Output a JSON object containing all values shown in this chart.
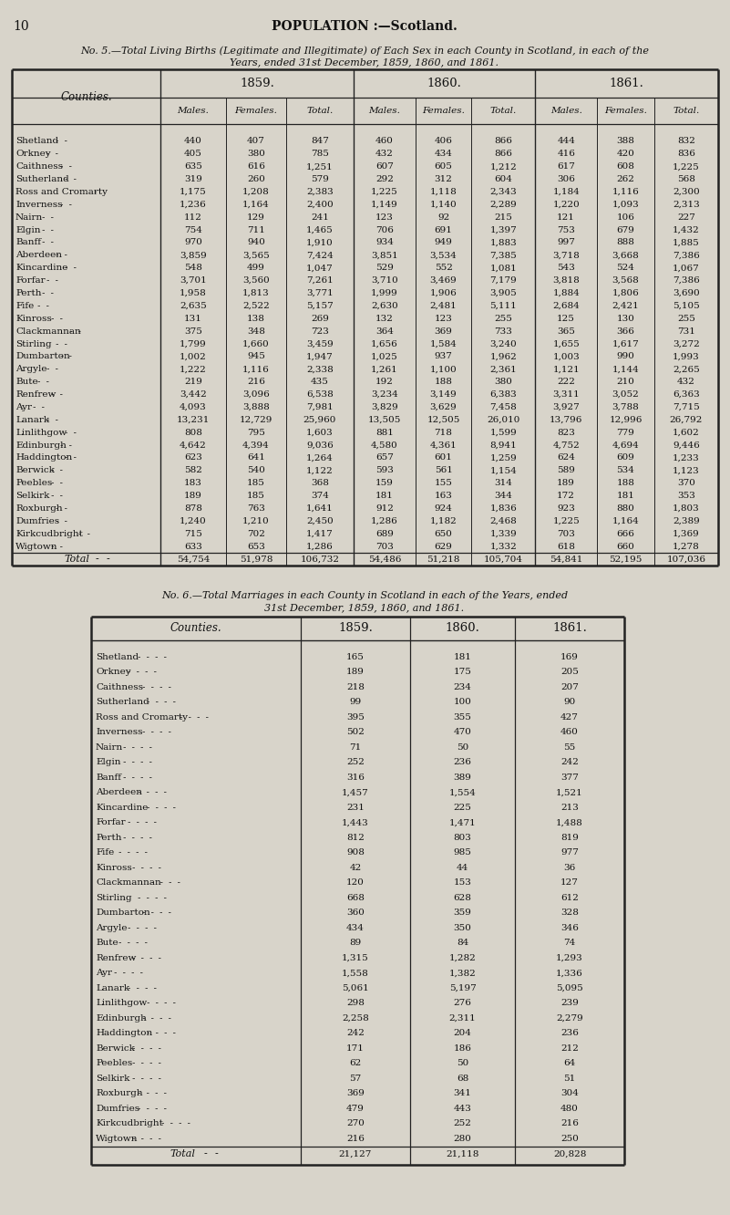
{
  "page_num": "10",
  "page_title": "POPULATION :—Scotland.",
  "table1_title_line1": "No. 5.—Total Living Births (Legitimate and Illegitimate) of Each Sex in each County in Scotland, in each of the",
  "table1_title_line2": "Years, ended 31st December, 1859, 1860, and 1861.",
  "table2_title_line1": "No. 6.—Total Marriages in each County in Scotland in each of the Years, ended",
  "table2_title_line2": "31st December, 1859, 1860, and 1861.",
  "counties": [
    "Shetland",
    "Orkney",
    "Caithness",
    "Sutherland",
    "Ross and Cromarty",
    "Inverness",
    "Nairn",
    "Elgin",
    "Banff",
    "Aberdeen",
    "Kincardine",
    "Forfar",
    "Perth",
    "Fife",
    "Kinross",
    "Clackmannan",
    "Stirling",
    "Dumbarton",
    "Argyle",
    "Bute",
    "Renfrew",
    "Ayr",
    "Lanark",
    "Linlithgow",
    "Edinburgh",
    "Haddington",
    "Berwick",
    "Peebles",
    "Selkirk",
    "Roxburgh",
    "Dumfries",
    "Kirkcudbright",
    "Wigtown"
  ],
  "table1_data": [
    [
      440,
      407,
      847,
      460,
      406,
      866,
      444,
      388,
      832
    ],
    [
      405,
      380,
      785,
      432,
      434,
      866,
      416,
      420,
      836
    ],
    [
      635,
      616,
      1251,
      607,
      605,
      1212,
      617,
      608,
      1225
    ],
    [
      319,
      260,
      579,
      292,
      312,
      604,
      306,
      262,
      568
    ],
    [
      1175,
      1208,
      2383,
      1225,
      1118,
      2343,
      1184,
      1116,
      2300
    ],
    [
      1236,
      1164,
      2400,
      1149,
      1140,
      2289,
      1220,
      1093,
      2313
    ],
    [
      112,
      129,
      241,
      123,
      92,
      215,
      121,
      106,
      227
    ],
    [
      754,
      711,
      1465,
      706,
      691,
      1397,
      753,
      679,
      1432
    ],
    [
      970,
      940,
      1910,
      934,
      949,
      1883,
      997,
      888,
      1885
    ],
    [
      3859,
      3565,
      7424,
      3851,
      3534,
      7385,
      3718,
      3668,
      7386
    ],
    [
      548,
      499,
      1047,
      529,
      552,
      1081,
      543,
      524,
      1067
    ],
    [
      3701,
      3560,
      7261,
      3710,
      3469,
      7179,
      3818,
      3568,
      7386
    ],
    [
      1958,
      1813,
      3771,
      1999,
      1906,
      3905,
      1884,
      1806,
      3690
    ],
    [
      2635,
      2522,
      5157,
      2630,
      2481,
      5111,
      2684,
      2421,
      5105
    ],
    [
      131,
      138,
      269,
      132,
      123,
      255,
      125,
      130,
      255
    ],
    [
      375,
      348,
      723,
      364,
      369,
      733,
      365,
      366,
      731
    ],
    [
      1799,
      1660,
      3459,
      1656,
      1584,
      3240,
      1655,
      1617,
      3272
    ],
    [
      1002,
      945,
      1947,
      1025,
      937,
      1962,
      1003,
      990,
      1993
    ],
    [
      1222,
      1116,
      2338,
      1261,
      1100,
      2361,
      1121,
      1144,
      2265
    ],
    [
      219,
      216,
      435,
      192,
      188,
      380,
      222,
      210,
      432
    ],
    [
      3442,
      3096,
      6538,
      3234,
      3149,
      6383,
      3311,
      3052,
      6363
    ],
    [
      4093,
      3888,
      7981,
      3829,
      3629,
      7458,
      3927,
      3788,
      7715
    ],
    [
      13231,
      12729,
      25960,
      13505,
      12505,
      26010,
      13796,
      12996,
      26792
    ],
    [
      808,
      795,
      1603,
      881,
      718,
      1599,
      823,
      779,
      1602
    ],
    [
      4642,
      4394,
      9036,
      4580,
      4361,
      8941,
      4752,
      4694,
      9446
    ],
    [
      623,
      641,
      1264,
      657,
      601,
      1259,
      624,
      609,
      1233
    ],
    [
      582,
      540,
      1122,
      593,
      561,
      1154,
      589,
      534,
      1123
    ],
    [
      183,
      185,
      368,
      159,
      155,
      314,
      189,
      188,
      370
    ],
    [
      189,
      185,
      374,
      181,
      163,
      344,
      172,
      181,
      353
    ],
    [
      878,
      763,
      1641,
      912,
      924,
      1836,
      923,
      880,
      1803
    ],
    [
      1240,
      1210,
      2450,
      1286,
      1182,
      2468,
      1225,
      1164,
      2389
    ],
    [
      715,
      702,
      1417,
      689,
      650,
      1339,
      703,
      666,
      1369
    ],
    [
      633,
      653,
      1286,
      703,
      629,
      1332,
      618,
      660,
      1278
    ]
  ],
  "table1_total": [
    54754,
    51978,
    106732,
    54486,
    51218,
    105704,
    54841,
    52195,
    107036
  ],
  "table2_data": [
    [
      165,
      181,
      169
    ],
    [
      189,
      175,
      205
    ],
    [
      218,
      234,
      207
    ],
    [
      99,
      100,
      90
    ],
    [
      395,
      355,
      427
    ],
    [
      502,
      470,
      460
    ],
    [
      71,
      50,
      55
    ],
    [
      252,
      236,
      242
    ],
    [
      316,
      389,
      377
    ],
    [
      1457,
      1554,
      1521
    ],
    [
      231,
      225,
      213
    ],
    [
      1443,
      1471,
      1488
    ],
    [
      812,
      803,
      819
    ],
    [
      908,
      985,
      977
    ],
    [
      42,
      44,
      36
    ],
    [
      120,
      153,
      127
    ],
    [
      668,
      628,
      612
    ],
    [
      360,
      359,
      328
    ],
    [
      434,
      350,
      346
    ],
    [
      89,
      84,
      74
    ],
    [
      1315,
      1282,
      1293
    ],
    [
      1558,
      1382,
      1336
    ],
    [
      5061,
      5197,
      5095
    ],
    [
      298,
      276,
      239
    ],
    [
      2258,
      2311,
      2279
    ],
    [
      242,
      204,
      236
    ],
    [
      171,
      186,
      212
    ],
    [
      62,
      50,
      64
    ],
    [
      57,
      68,
      51
    ],
    [
      369,
      341,
      304
    ],
    [
      479,
      443,
      480
    ],
    [
      270,
      252,
      216
    ],
    [
      216,
      280,
      250
    ]
  ],
  "table2_total": [
    21127,
    21118,
    20828
  ],
  "bg_color": "#d8d4ca",
  "paper_color": "#e8e5dd",
  "text_color": "#111111",
  "line_color": "#222222"
}
